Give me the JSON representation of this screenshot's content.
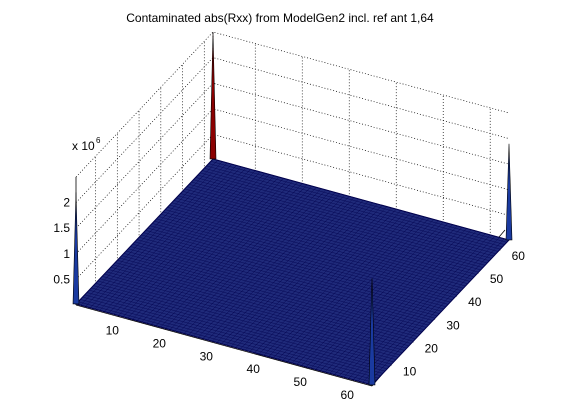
{
  "chart_data": {
    "type": "surface3d",
    "title": "Contaminated abs(Rxx) from ModelGen2 incl. ref ant 1,64",
    "z_exponent_label": "x 10",
    "z_exponent_power": "6",
    "x_ticks": [
      "10",
      "20",
      "30",
      "40",
      "50",
      "60"
    ],
    "y_ticks": [
      "10",
      "20",
      "30",
      "40",
      "50",
      "60"
    ],
    "z_ticks": [
      "0.5",
      "1",
      "1.5",
      "2"
    ],
    "x_range": [
      1,
      64
    ],
    "y_range": [
      1,
      64
    ],
    "z_range": [
      0,
      2.5
    ],
    "grid": true,
    "surface_color": "#1f2a7a",
    "edge_color": "#00004d",
    "peak_color": "#8b0000",
    "peaks": [
      {
        "x": 1,
        "y": 1,
        "z": 2.2,
        "color": "#1a3aa0"
      },
      {
        "x": 1,
        "y": 64,
        "z": 2.5,
        "color": "#8b0000"
      },
      {
        "x": 64,
        "y": 1,
        "z": 2.1,
        "color": "#1a3aa0"
      },
      {
        "x": 64,
        "y": 64,
        "z": 1.9,
        "color": "#1a3aa0"
      }
    ]
  }
}
